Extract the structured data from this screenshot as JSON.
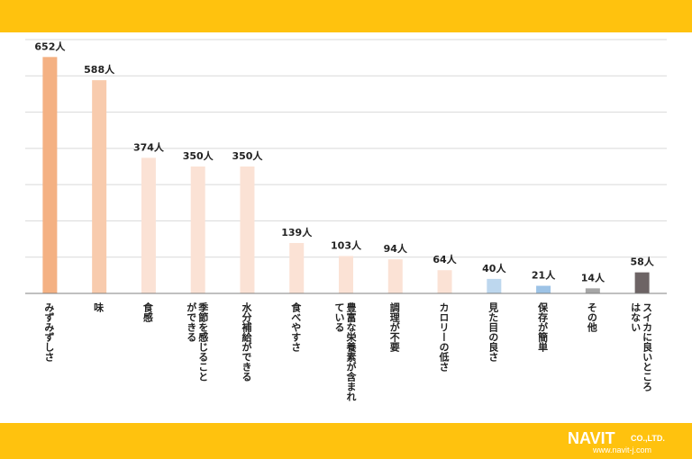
{
  "colors": {
    "band": "#ffc20e",
    "grid": "#d9d9d9",
    "axis": "#808080",
    "text": "#222222"
  },
  "logo": {
    "main": "NAVIT",
    "suffix": "CO.,LTD.",
    "url": "www.navit-j.com"
  },
  "chart_data": {
    "type": "bar",
    "unit_suffix": "人",
    "ylim": [
      0,
      700
    ],
    "grid": true,
    "categories": [
      "みずみずしさ",
      "味",
      "食感",
      "季節を感じることができる",
      "水分補給ができる",
      "食べやすさ",
      "豊富な栄養素が含まれている",
      "調理が不要",
      "カロリーの低さ",
      "見た目の良さ",
      "保存が簡単",
      "その他",
      "スイカに良いところはない"
    ],
    "values": [
      652,
      588,
      374,
      350,
      350,
      139,
      103,
      94,
      64,
      40,
      21,
      14,
      58
    ],
    "labels": [
      "652人",
      "588人",
      "374人",
      "350人",
      "350人",
      "139人",
      "103人",
      "94人",
      "64人",
      "40人",
      "21人",
      "14人",
      "58人"
    ],
    "bar_colors": [
      "#f4b183",
      "#f8cbad",
      "#fbe2d5",
      "#fbe2d5",
      "#fbe2d5",
      "#fbe2d5",
      "#fbe2d5",
      "#fbe2d5",
      "#fbe2d5",
      "#bdd7ee",
      "#9dc3e6",
      "#a6a6a6",
      "#6d6465"
    ],
    "xlabel_lines": [
      [
        "みずみずしさ"
      ],
      [
        "味"
      ],
      [
        "食感"
      ],
      [
        "季節を感じること",
        "ができる"
      ],
      [
        "水分補給ができる"
      ],
      [
        "食べやすさ"
      ],
      [
        "豊富な栄養素が含まれ",
        "ている"
      ],
      [
        "調理が不要"
      ],
      [
        "カロリーの低さ"
      ],
      [
        "見た目の良さ"
      ],
      [
        "保存が簡単"
      ],
      [
        "その他"
      ],
      [
        "スイカに良いところ",
        "はない"
      ]
    ]
  }
}
